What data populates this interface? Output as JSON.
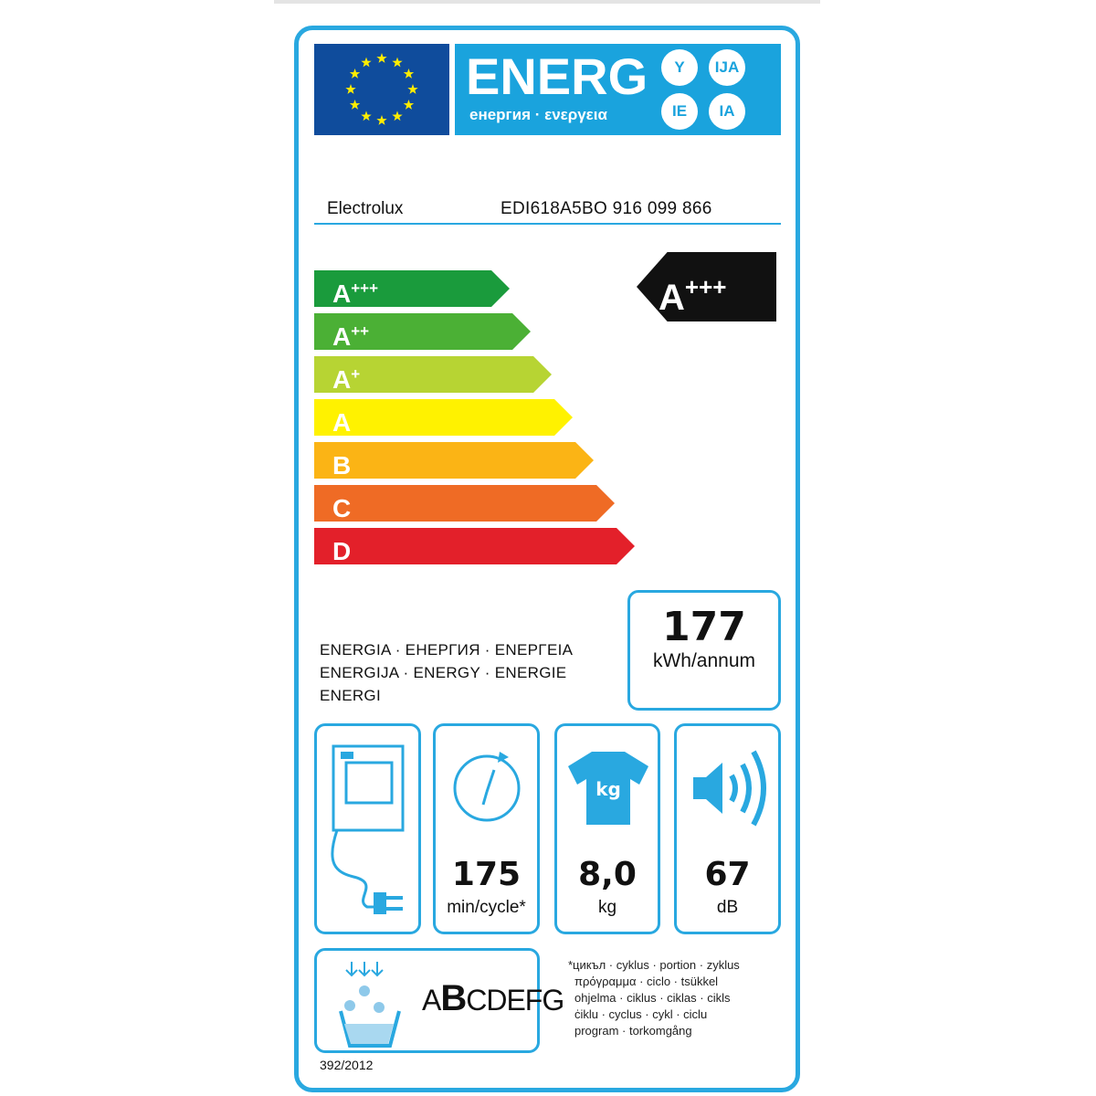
{
  "header": {
    "energy_title": "ENERG",
    "energy_subtitle": "енергия · ενεργεια",
    "suffixes": [
      "Y",
      "IJA",
      "IE",
      "IA"
    ]
  },
  "supplier": {
    "brand": "Electrolux",
    "model": "EDI618A5BO  916 099 866"
  },
  "scale": {
    "classes": [
      {
        "label": "A",
        "sup": "+++",
        "color": "#1a9b3c"
      },
      {
        "label": "A",
        "sup": "++",
        "color": "#4bb035"
      },
      {
        "label": "A",
        "sup": "+",
        "color": "#b7d433"
      },
      {
        "label": "A",
        "sup": "",
        "color": "#fff200"
      },
      {
        "label": "B",
        "sup": "",
        "color": "#fbb415"
      },
      {
        "label": "C",
        "sup": "",
        "color": "#ef6b25"
      },
      {
        "label": "D",
        "sup": "",
        "color": "#e3202a"
      }
    ]
  },
  "rating": {
    "label": "A",
    "sup": "+++"
  },
  "energy": {
    "lines": [
      "ENERGIA · ЕНЕРГИЯ · ΕΝΕΡΓΕΙΑ",
      "ENERGIJA · ENERGY · ENERGIE",
      "ENERGI"
    ],
    "value": "177",
    "unit": "kWh/annum"
  },
  "specs": {
    "time": {
      "value": "175",
      "unit": "min/cycle*"
    },
    "capacity": {
      "value": "8,0",
      "unit": "kg",
      "icon_text": "kg"
    },
    "noise": {
      "value": "67",
      "unit": "dB"
    }
  },
  "condensation": {
    "pre": "A",
    "selected": "B",
    "post": "CDEFG"
  },
  "footnote": [
    "*цикъл · cyklus · portion · zyklus",
    "πρόγραμμα · ciclo · tsükkel",
    "ohjelma · ciklus · ciklas · cikls",
    "ċiklu · cyclus · cykl · ciclu",
    "program · torkomgång"
  ],
  "regulation": "392/2012",
  "colors": {
    "frame": "#29a8e0",
    "eu_blue": "#0f4c9c",
    "energy_blue": "#1aa3dd",
    "star": "#ffed00"
  }
}
